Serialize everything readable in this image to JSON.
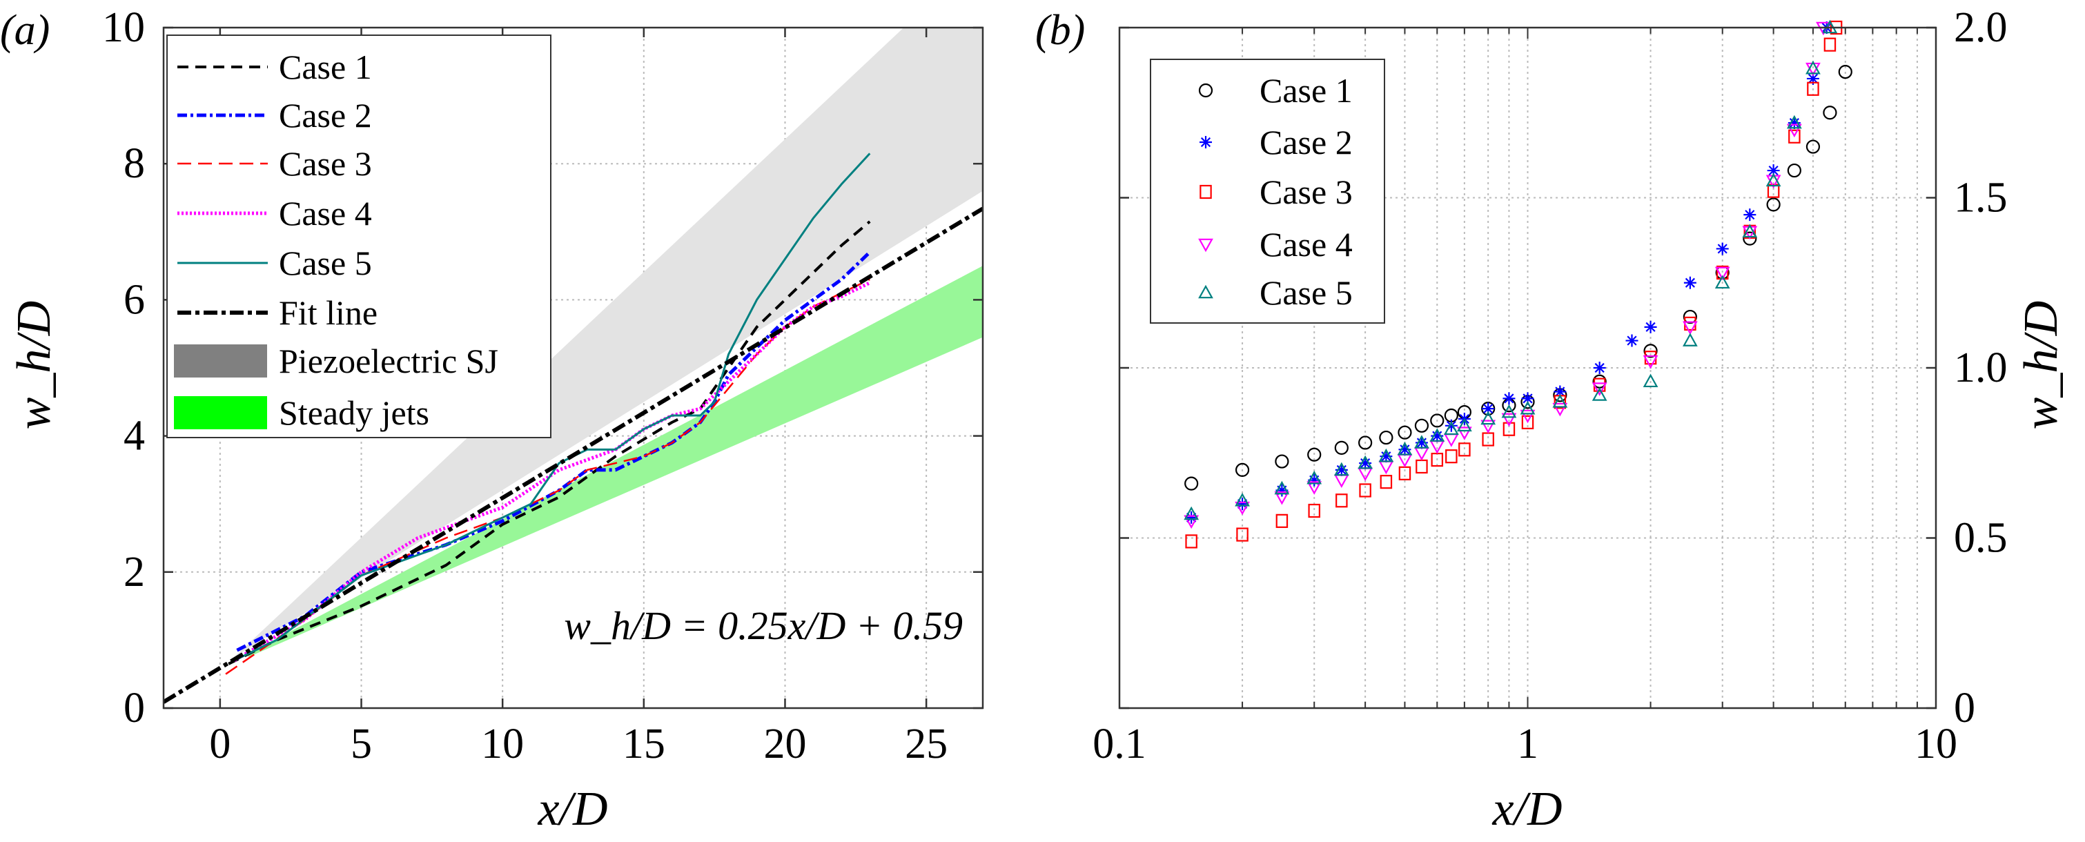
{
  "chart_data": [
    {
      "panel_label": "(a)",
      "type": "line",
      "xlabel": "x/D",
      "ylabel": "w_h/D",
      "xlim": [
        -2,
        27
      ],
      "ylim": [
        0,
        10
      ],
      "xticks": [
        "0",
        "5",
        "10",
        "15",
        "20",
        "25"
      ],
      "xtick_values": [
        0,
        5,
        10,
        15,
        20,
        25
      ],
      "yticks": [
        "0",
        "2",
        "4",
        "6",
        "8",
        "10"
      ],
      "ytick_values": [
        0,
        2,
        4,
        6,
        8,
        10
      ],
      "grid": true,
      "legend": "top-left",
      "annotation": "w_h/D = 0.25x/D + 0.59",
      "bands": [
        {
          "name": "Piezoelectric SJ",
          "color": "#e3e3e3",
          "legend_color": "#808080",
          "upper": [
            [
              0.5,
              0.75
            ],
            [
              24.2,
              10
            ],
            [
              27,
              10
            ]
          ],
          "lower": [
            [
              0.5,
              0.75
            ],
            [
              27,
              7.6
            ]
          ]
        },
        {
          "name": "Steady jets",
          "color": "#98f798",
          "legend_color": "#00ff00",
          "upper": [
            [
              1,
              0.8
            ],
            [
              27,
              6.5
            ]
          ],
          "lower": [
            [
              1,
              0.75
            ],
            [
              27,
              5.45
            ]
          ]
        }
      ],
      "series": [
        {
          "name": "Case 1",
          "color": "#000000",
          "style": "dashed",
          "points": [
            [
              0.3,
              0.65
            ],
            [
              2,
              1.0
            ],
            [
              5,
              1.5
            ],
            [
              8,
              2.1
            ],
            [
              10,
              2.7
            ],
            [
              12,
              3.1
            ],
            [
              14,
              3.7
            ],
            [
              16,
              4.2
            ],
            [
              17,
              4.4
            ],
            [
              18,
              5.0
            ],
            [
              19,
              5.6
            ],
            [
              20,
              6.0
            ],
            [
              21,
              6.4
            ],
            [
              22,
              6.8
            ],
            [
              23,
              7.15
            ]
          ]
        },
        {
          "name": "Case 2",
          "color": "#0000ff",
          "style": "dash-dot",
          "points": [
            [
              0.6,
              0.85
            ],
            [
              3,
              1.35
            ],
            [
              5,
              2.0
            ],
            [
              8,
              2.4
            ],
            [
              10,
              2.75
            ],
            [
              12,
              3.2
            ],
            [
              13,
              3.5
            ],
            [
              14,
              3.5
            ],
            [
              15,
              3.7
            ],
            [
              16,
              3.9
            ],
            [
              17,
              4.2
            ],
            [
              17.5,
              4.5
            ],
            [
              18,
              4.9
            ],
            [
              19,
              5.3
            ],
            [
              20,
              5.7
            ],
            [
              21,
              6.0
            ],
            [
              22,
              6.3
            ],
            [
              23,
              6.7
            ]
          ]
        },
        {
          "name": "Case 3",
          "color": "#ff0000",
          "style": "thin-dashed",
          "points": [
            [
              0.2,
              0.5
            ],
            [
              3,
              1.3
            ],
            [
              5,
              1.95
            ],
            [
              8,
              2.5
            ],
            [
              10,
              2.8
            ],
            [
              12,
              3.2
            ],
            [
              13,
              3.5
            ],
            [
              15,
              3.7
            ],
            [
              16,
              3.9
            ],
            [
              17,
              4.2
            ],
            [
              18,
              4.7
            ],
            [
              19,
              5.2
            ],
            [
              20,
              5.6
            ],
            [
              21,
              5.9
            ],
            [
              22,
              6.1
            ],
            [
              23,
              6.3
            ]
          ]
        },
        {
          "name": "Case 4",
          "color": "#ff00ff",
          "style": "dotted",
          "points": [
            [
              0.5,
              0.7
            ],
            [
              3,
              1.3
            ],
            [
              5,
              2.0
            ],
            [
              7,
              2.5
            ],
            [
              10,
              2.95
            ],
            [
              12,
              3.5
            ],
            [
              14,
              3.8
            ],
            [
              15,
              4.1
            ],
            [
              16,
              4.3
            ],
            [
              17,
              4.4
            ],
            [
              18,
              4.8
            ],
            [
              19,
              5.2
            ],
            [
              20,
              5.6
            ],
            [
              21,
              5.9
            ],
            [
              22,
              6.05
            ],
            [
              23,
              6.25
            ]
          ]
        },
        {
          "name": "Case 5",
          "color": "#008080",
          "style": "solid",
          "points": [
            [
              0.5,
              0.7
            ],
            [
              2,
              1.0
            ],
            [
              5,
              1.95
            ],
            [
              8,
              2.4
            ],
            [
              10,
              2.8
            ],
            [
              11,
              3.0
            ],
            [
              12,
              3.6
            ],
            [
              13,
              3.8
            ],
            [
              14,
              3.8
            ],
            [
              15,
              4.1
            ],
            [
              16,
              4.3
            ],
            [
              17,
              4.3
            ],
            [
              17.5,
              4.5
            ],
            [
              18,
              5.2
            ],
            [
              19,
              6.0
            ],
            [
              20,
              6.6
            ],
            [
              21,
              7.2
            ],
            [
              22,
              7.7
            ],
            [
              23,
              8.15
            ]
          ]
        },
        {
          "name": "Fit line",
          "color": "#000000",
          "style": "thick-dash-dot",
          "points": [
            [
              -2,
              0.09
            ],
            [
              27,
              7.34
            ]
          ]
        }
      ]
    },
    {
      "panel_label": "(b)",
      "type": "scatter",
      "xlabel": "x/D",
      "ylabel": "w_h/D",
      "xscale": "log",
      "xlim": [
        0.1,
        10
      ],
      "ylim": [
        0,
        2.0
      ],
      "xticks": [
        "0.1",
        "1",
        "10"
      ],
      "xtick_values": [
        0.1,
        1,
        10
      ],
      "yticks": [
        "0",
        "0.5",
        "1.0",
        "1.5",
        "2.0"
      ],
      "ytick_values": [
        0,
        0.5,
        1.0,
        1.5,
        2.0
      ],
      "yaxis_side": "right",
      "grid": true,
      "legend": "top-left",
      "series": [
        {
          "name": "Case 1",
          "color": "#000000",
          "marker": "circle",
          "points": [
            [
              0.15,
              0.66
            ],
            [
              0.2,
              0.7
            ],
            [
              0.25,
              0.725
            ],
            [
              0.3,
              0.745
            ],
            [
              0.35,
              0.765
            ],
            [
              0.4,
              0.78
            ],
            [
              0.45,
              0.795
            ],
            [
              0.5,
              0.81
            ],
            [
              0.55,
              0.83
            ],
            [
              0.6,
              0.845
            ],
            [
              0.65,
              0.86
            ],
            [
              0.7,
              0.87
            ],
            [
              0.8,
              0.88
            ],
            [
              0.9,
              0.89
            ],
            [
              1.0,
              0.9
            ],
            [
              1.2,
              0.92
            ],
            [
              1.5,
              0.96
            ],
            [
              2.0,
              1.05
            ],
            [
              2.5,
              1.15
            ],
            [
              3.0,
              1.28
            ],
            [
              3.5,
              1.38
            ],
            [
              4.0,
              1.48
            ],
            [
              4.5,
              1.58
            ],
            [
              5.0,
              1.65
            ],
            [
              5.5,
              1.75
            ],
            [
              6.0,
              1.87
            ]
          ]
        },
        {
          "name": "Case 2",
          "color": "#0000ff",
          "marker": "asterisk",
          "points": [
            [
              0.15,
              0.56
            ],
            [
              0.2,
              0.6
            ],
            [
              0.25,
              0.64
            ],
            [
              0.3,
              0.67
            ],
            [
              0.35,
              0.7
            ],
            [
              0.4,
              0.72
            ],
            [
              0.45,
              0.74
            ],
            [
              0.5,
              0.76
            ],
            [
              0.55,
              0.78
            ],
            [
              0.6,
              0.8
            ],
            [
              0.65,
              0.83
            ],
            [
              0.7,
              0.85
            ],
            [
              0.8,
              0.88
            ],
            [
              0.9,
              0.91
            ],
            [
              1.0,
              0.91
            ],
            [
              1.2,
              0.93
            ],
            [
              1.5,
              1.0
            ],
            [
              1.8,
              1.08
            ],
            [
              2.0,
              1.12
            ],
            [
              2.5,
              1.25
            ],
            [
              3.0,
              1.35
            ],
            [
              3.5,
              1.45
            ],
            [
              4.0,
              1.58
            ],
            [
              4.5,
              1.72
            ],
            [
              5.0,
              1.85
            ],
            [
              5.4,
              2.0
            ]
          ]
        },
        {
          "name": "Case 3",
          "color": "#ff0000",
          "marker": "square",
          "points": [
            [
              0.15,
              0.49
            ],
            [
              0.2,
              0.51
            ],
            [
              0.25,
              0.55
            ],
            [
              0.3,
              0.58
            ],
            [
              0.35,
              0.61
            ],
            [
              0.4,
              0.64
            ],
            [
              0.45,
              0.665
            ],
            [
              0.5,
              0.69
            ],
            [
              0.55,
              0.71
            ],
            [
              0.6,
              0.73
            ],
            [
              0.65,
              0.74
            ],
            [
              0.7,
              0.76
            ],
            [
              0.8,
              0.79
            ],
            [
              0.9,
              0.82
            ],
            [
              1.0,
              0.84
            ],
            [
              1.2,
              0.9
            ],
            [
              1.5,
              0.95
            ],
            [
              2.0,
              1.03
            ],
            [
              2.5,
              1.13
            ],
            [
              3.0,
              1.28
            ],
            [
              3.5,
              1.4
            ],
            [
              4.0,
              1.52
            ],
            [
              4.5,
              1.68
            ],
            [
              5.0,
              1.82
            ],
            [
              5.5,
              1.95
            ],
            [
              5.7,
              2.0
            ]
          ]
        },
        {
          "name": "Case 4",
          "color": "#ff00ff",
          "marker": "triangle-down",
          "points": [
            [
              0.15,
              0.55
            ],
            [
              0.2,
              0.59
            ],
            [
              0.25,
              0.62
            ],
            [
              0.3,
              0.65
            ],
            [
              0.35,
              0.67
            ],
            [
              0.4,
              0.69
            ],
            [
              0.45,
              0.71
            ],
            [
              0.5,
              0.73
            ],
            [
              0.55,
              0.75
            ],
            [
              0.6,
              0.77
            ],
            [
              0.65,
              0.79
            ],
            [
              0.7,
              0.81
            ],
            [
              0.8,
              0.83
            ],
            [
              0.9,
              0.85
            ],
            [
              1.0,
              0.86
            ],
            [
              1.2,
              0.88
            ],
            [
              1.5,
              0.94
            ],
            [
              2.0,
              1.02
            ],
            [
              2.5,
              1.12
            ],
            [
              3.0,
              1.28
            ],
            [
              3.5,
              1.4
            ],
            [
              4.0,
              1.55
            ],
            [
              4.5,
              1.7
            ],
            [
              5.0,
              1.88
            ],
            [
              5.3,
              2.0
            ]
          ]
        },
        {
          "name": "Case 5",
          "color": "#008080",
          "marker": "triangle-up",
          "points": [
            [
              0.15,
              0.57
            ],
            [
              0.2,
              0.61
            ],
            [
              0.25,
              0.645
            ],
            [
              0.3,
              0.675
            ],
            [
              0.35,
              0.7
            ],
            [
              0.4,
              0.72
            ],
            [
              0.45,
              0.74
            ],
            [
              0.5,
              0.76
            ],
            [
              0.55,
              0.78
            ],
            [
              0.6,
              0.8
            ],
            [
              0.65,
              0.82
            ],
            [
              0.7,
              0.83
            ],
            [
              0.8,
              0.85
            ],
            [
              0.9,
              0.87
            ],
            [
              1.0,
              0.88
            ],
            [
              1.2,
              0.9
            ],
            [
              1.5,
              0.92
            ],
            [
              2.0,
              0.96
            ],
            [
              2.5,
              1.08
            ],
            [
              3.0,
              1.25
            ],
            [
              3.5,
              1.4
            ],
            [
              4.0,
              1.55
            ],
            [
              4.5,
              1.72
            ],
            [
              5.0,
              1.88
            ],
            [
              5.5,
              2.0
            ]
          ]
        }
      ]
    }
  ]
}
